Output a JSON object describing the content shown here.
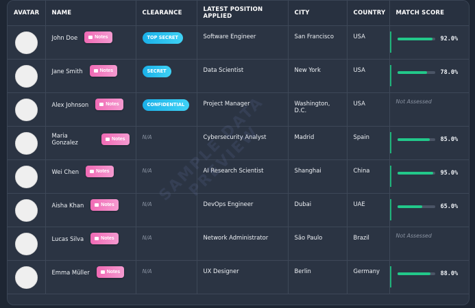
{
  "headers": {
    "avatar": "AVATAR",
    "name": "NAME",
    "clearance": "CLEARANCE",
    "position": "LATEST POSITION APPLIED",
    "city": "CITY",
    "country": "COUNTRY",
    "match": "MATCH SCORE"
  },
  "notes_label": "Notes",
  "watermark": {
    "line1": "SAMPLE DATA",
    "line2": "PREVIEW"
  },
  "rows": [
    {
      "name": "John Doe",
      "clearance": "TOP SECRET",
      "position": "Software Engineer",
      "city": "San Francisco",
      "country": "USA",
      "score": "92.0%",
      "score_value": 0.92
    },
    {
      "name": "Jane Smith",
      "clearance": "SECRET",
      "position": "Data Scientist",
      "city": "New York",
      "country": "USA",
      "score": "78.0%",
      "score_value": 0.78
    },
    {
      "name": "Alex Johnson",
      "clearance": "CONFIDENTIAL",
      "position": "Project Manager",
      "city": "Washington, D.C.",
      "country": "USA",
      "score": "Not Assessed",
      "score_value": null
    },
    {
      "name": "Maria Gonzalez",
      "clearance": "N/A",
      "position": "Cybersecurity Analyst",
      "city": "Madrid",
      "country": "Spain",
      "score": "85.0%",
      "score_value": 0.85
    },
    {
      "name": "Wei Chen",
      "clearance": "N/A",
      "position": "AI Research Scientist",
      "city": "Shanghai",
      "country": "China",
      "score": "95.0%",
      "score_value": 0.95
    },
    {
      "name": "Aisha Khan",
      "clearance": "N/A",
      "position": "DevOps Engineer",
      "city": "Dubai",
      "country": "UAE",
      "score": "65.0%",
      "score_value": 0.65
    },
    {
      "name": "Lucas Silva",
      "clearance": "N/A",
      "position": "Network Administrator",
      "city": "São Paulo",
      "country": "Brazil",
      "score": "Not Assessed",
      "score_value": null
    },
    {
      "name": "Emma Müller",
      "clearance": "N/A",
      "position": "UX Designer",
      "city": "Berlin",
      "country": "Germany",
      "score": "88.0%",
      "score_value": 0.88
    }
  ]
}
